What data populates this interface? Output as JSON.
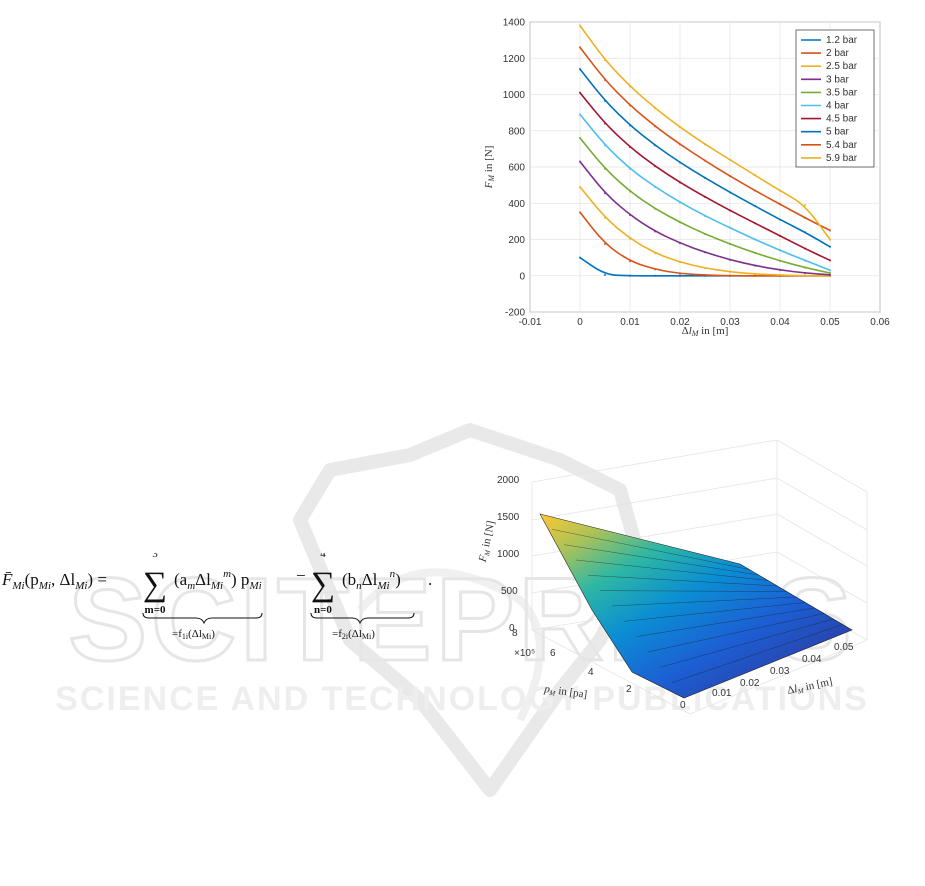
{
  "watermark": {
    "brand": "SCITEPRESS",
    "tagline": "SCIENCE AND TECHNOLOGY PUBLICATIONS"
  },
  "equation": {
    "lhs": "F̄",
    "lhs_sub": "Mi",
    "args": "(p",
    "args_sub1": "Mi",
    "args_mid": ", Δl",
    "args_sub2": "Mi",
    "args_end": ") =",
    "sum1_upper": "3",
    "sum1_lower": "m=0",
    "term1": "(a",
    "term1_sub": "m",
    "term1_mid": "Δl",
    "term1_sub2": "Mi",
    "term1_exp": "m",
    "term1_end": ") p",
    "term1_p_sub": "Mi",
    "minus": "−",
    "sum2_upper": "4",
    "sum2_lower": "n=0",
    "term2": "(b",
    "term2_sub": "n",
    "term2_mid": "Δl",
    "term2_sub2": "Mi",
    "term2_exp": "n",
    "term2_end": ")",
    "period": ".",
    "brace1_label": "=f",
    "brace1_sub": "1i",
    "brace1_arg": "(Δl",
    "brace1_arg_sub": "Mi",
    "brace1_end": ")",
    "brace2_label": "=f",
    "brace2_sub": "2i",
    "brace2_arg": "(Δl",
    "brace2_arg_sub": "Mi",
    "brace2_end": ")"
  },
  "chart_data": [
    {
      "type": "line",
      "title": "",
      "xlabel": "Δl_M in [m]",
      "ylabel": "F_M in [N]",
      "xlim": [
        -0.01,
        0.06
      ],
      "ylim": [
        -200,
        1400
      ],
      "xticks": [
        "-0.01",
        "0",
        "0.01",
        "0.02",
        "0.03",
        "0.04",
        "0.05",
        "0.06"
      ],
      "yticks": [
        "-200",
        "0",
        "200",
        "400",
        "600",
        "800",
        "1000",
        "1200",
        "1400"
      ],
      "grid": true,
      "legend_position": "top-right",
      "x": [
        0,
        0.005,
        0.01,
        0.015,
        0.02,
        0.025,
        0.03,
        0.035,
        0.04,
        0.045,
        0.05
      ],
      "series": [
        {
          "name": "1.2 bar",
          "color": "#0072bd",
          "values": [
            100,
            5,
            0,
            0,
            0,
            0,
            0,
            0,
            0,
            0,
            0
          ]
        },
        {
          "name": "2 bar",
          "color": "#d95319",
          "values": [
            350,
            175,
            80,
            35,
            12,
            4,
            0,
            0,
            0,
            0,
            0
          ]
        },
        {
          "name": "2.5 bar",
          "color": "#edb120",
          "values": [
            490,
            320,
            205,
            125,
            75,
            42,
            22,
            10,
            4,
            0,
            0
          ]
        },
        {
          "name": "3 bar",
          "color": "#7e2f8e",
          "values": [
            630,
            455,
            335,
            245,
            180,
            130,
            88,
            56,
            32,
            15,
            5
          ]
        },
        {
          "name": "3.5 bar",
          "color": "#77ac30",
          "values": [
            760,
            590,
            465,
            370,
            295,
            230,
            175,
            126,
            82,
            45,
            15
          ]
        },
        {
          "name": "4 bar",
          "color": "#4dbeee",
          "values": [
            890,
            720,
            590,
            490,
            405,
            330,
            265,
            200,
            140,
            85,
            30
          ]
        },
        {
          "name": "4.5 bar",
          "color": "#a2142f",
          "values": [
            1010,
            840,
            710,
            605,
            515,
            435,
            360,
            290,
            220,
            150,
            85
          ]
        },
        {
          "name": "5 bar",
          "color": "#0072bd",
          "values": [
            1140,
            965,
            830,
            720,
            625,
            540,
            460,
            385,
            310,
            240,
            160
          ]
        },
        {
          "name": "5.4 bar",
          "color": "#d95319",
          "values": [
            1260,
            1080,
            940,
            825,
            725,
            635,
            550,
            470,
            395,
            320,
            250
          ]
        },
        {
          "name": "5.9 bar",
          "color": "#edb120",
          "values": [
            1380,
            1190,
            1045,
            925,
            820,
            725,
            640,
            555,
            470,
            390,
            200
          ]
        }
      ]
    },
    {
      "type": "surface",
      "title": "",
      "xlabel": "Δl_M in [m]",
      "ylabel": "p_M in [pa]",
      "zlabel": "F_M in [N]",
      "y_multiplier": "×10⁵",
      "xticks": [
        "0",
        "0.01",
        "0.02",
        "0.03",
        "0.04",
        "0.05"
      ],
      "yticks": [
        "0",
        "2",
        "4",
        "6",
        "8"
      ],
      "zticks": [
        "0",
        "500",
        "1000",
        "1500",
        "2000"
      ],
      "grid": true,
      "colormap": [
        "#352a87",
        "#0f5cdd",
        "#1481d6",
        "#06a4ca",
        "#2eb7a4",
        "#87bf77",
        "#d1bb59",
        "#fec832"
      ]
    }
  ]
}
